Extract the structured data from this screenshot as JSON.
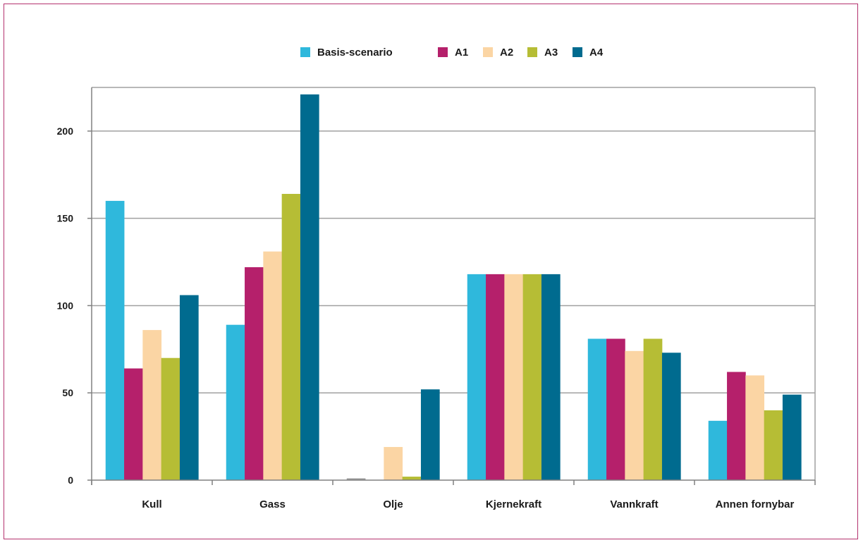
{
  "chart_data": {
    "type": "bar",
    "title": "",
    "xlabel": "",
    "ylabel": "",
    "categories": [
      "Kull",
      "Gass",
      "Olje",
      "Kjernekraft",
      "Vannkraft",
      "Annen fornybar"
    ],
    "series": [
      {
        "name": "Basis-scenario",
        "color": "#2fb8dc",
        "values": [
          160,
          89,
          1,
          118,
          81,
          34
        ]
      },
      {
        "name": "A1",
        "color": "#b5206b",
        "values": [
          64,
          122,
          0,
          118,
          81,
          62
        ]
      },
      {
        "name": "A2",
        "color": "#fbd5a4",
        "values": [
          86,
          131,
          19,
          118,
          74,
          60
        ]
      },
      {
        "name": "A3",
        "color": "#b6bd35",
        "values": [
          70,
          164,
          2,
          118,
          81,
          40
        ]
      },
      {
        "name": "A4",
        "color": "#006b8f",
        "values": [
          106,
          221,
          52,
          118,
          73,
          49
        ]
      }
    ],
    "ylim": [
      0,
      225
    ],
    "yticks": [
      "0",
      "50",
      "100",
      "150",
      "200"
    ],
    "ytick_values": [
      0,
      50,
      100,
      150,
      200
    ],
    "grid": true,
    "legend_position": "top",
    "colors": {
      "frame": "#b4326e",
      "grid": "#a0a0a0",
      "axis": "#808080",
      "zero_value": "#999999"
    }
  }
}
